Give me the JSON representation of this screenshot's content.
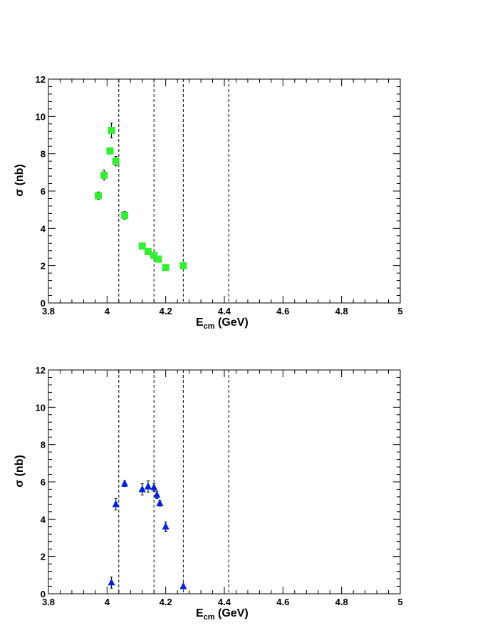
{
  "chart_data": [
    {
      "type": "scatter",
      "marker": "square",
      "color": "#33ee33",
      "xlabel": "E",
      "xlabel_sub": "cm",
      "xlabel_unit": "(GeV)",
      "ylabel": "σ (nb)",
      "xlim": [
        3.8,
        5.0
      ],
      "ylim": [
        0,
        12
      ],
      "xticks": [
        "3.8",
        "4",
        "4.2",
        "4.4",
        "4.6",
        "4.8",
        "5"
      ],
      "yticks": [
        "0",
        "2",
        "4",
        "6",
        "8",
        "10",
        "12"
      ],
      "vlines": [
        4.04,
        4.16,
        4.26,
        4.415
      ],
      "points": [
        {
          "x": 3.97,
          "y": 5.75,
          "err": 0.2
        },
        {
          "x": 3.99,
          "y": 6.85,
          "err": 0.25
        },
        {
          "x": 4.01,
          "y": 8.15,
          "err": 0.15
        },
        {
          "x": 4.015,
          "y": 9.25,
          "err": 0.4
        },
        {
          "x": 4.03,
          "y": 7.6,
          "err": 0.25
        },
        {
          "x": 4.06,
          "y": 4.7,
          "err": 0.2
        },
        {
          "x": 4.12,
          "y": 3.05,
          "err": 0.1
        },
        {
          "x": 4.14,
          "y": 2.75,
          "err": 0.15
        },
        {
          "x": 4.16,
          "y": 2.55,
          "err": 0.1
        },
        {
          "x": 4.175,
          "y": 2.35,
          "err": 0.1
        },
        {
          "x": 4.2,
          "y": 1.9,
          "err": 0.1
        },
        {
          "x": 4.26,
          "y": 2.0,
          "err": 0.1
        }
      ]
    },
    {
      "type": "scatter",
      "marker": "triangle",
      "color": "#0022dd",
      "xlabel": "E",
      "xlabel_sub": "cm",
      "xlabel_unit": "(GeV)",
      "ylabel": "σ (nb)",
      "xlim": [
        3.8,
        5.0
      ],
      "ylim": [
        0,
        12
      ],
      "xticks": [
        "3.8",
        "4",
        "4.2",
        "4.4",
        "4.6",
        "4.8",
        "5"
      ],
      "yticks": [
        "0",
        "2",
        "4",
        "6",
        "8",
        "10",
        "12"
      ],
      "vlines": [
        4.04,
        4.16,
        4.26,
        4.415
      ],
      "points": [
        {
          "x": 4.015,
          "y": 0.6,
          "err": 0.3
        },
        {
          "x": 4.03,
          "y": 4.8,
          "err": 0.3
        },
        {
          "x": 4.06,
          "y": 5.9,
          "err": 0.15
        },
        {
          "x": 4.12,
          "y": 5.6,
          "err": 0.3
        },
        {
          "x": 4.14,
          "y": 5.75,
          "err": 0.3
        },
        {
          "x": 4.16,
          "y": 5.7,
          "err": 0.2
        },
        {
          "x": 4.17,
          "y": 5.3,
          "err": 0.2
        },
        {
          "x": 4.18,
          "y": 4.85,
          "err": 0.15
        },
        {
          "x": 4.2,
          "y": 3.6,
          "err": 0.25
        },
        {
          "x": 4.26,
          "y": 0.4,
          "err": 0.1
        }
      ]
    }
  ]
}
